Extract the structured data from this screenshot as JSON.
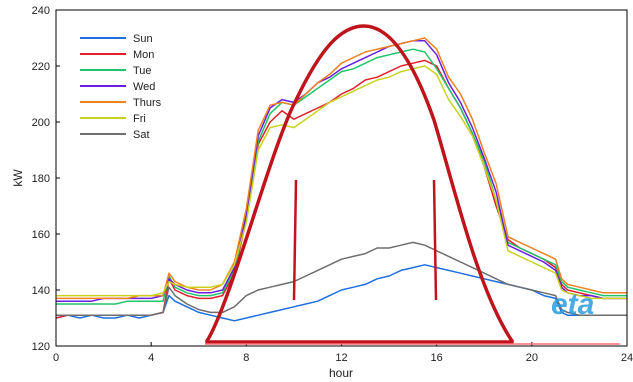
{
  "chart_data": {
    "type": "line",
    "title": "",
    "xlabel": "hour",
    "ylabel": "kW",
    "xlim": [
      0,
      24
    ],
    "ylim": [
      120,
      240
    ],
    "xticks": [
      0,
      4,
      8,
      12,
      16,
      20,
      24
    ],
    "yticks": [
      120,
      140,
      160,
      180,
      200,
      220,
      240
    ],
    "grid": false,
    "legend_position": "top-left",
    "x": [
      0,
      0.5,
      1,
      1.5,
      2,
      2.5,
      3,
      3.5,
      4,
      4.5,
      4.75,
      5,
      5.5,
      6,
      6.5,
      7,
      7.5,
      8,
      8.5,
      9,
      9.5,
      10,
      10.5,
      11,
      11.5,
      12,
      12.5,
      13,
      13.5,
      14,
      14.5,
      15,
      15.5,
      16,
      16.5,
      17,
      17.5,
      18,
      18.5,
      19,
      19.5,
      20,
      20.5,
      21,
      21.25,
      21.5,
      22,
      22.5,
      23,
      23.5,
      24
    ],
    "series": [
      {
        "name": "Sun",
        "color": "#1f6fe0",
        "values": [
          130,
          131,
          130,
          131,
          130,
          130,
          131,
          130,
          131,
          132,
          138,
          136,
          134,
          132,
          131,
          130,
          129,
          130,
          131,
          132,
          133,
          134,
          135,
          136,
          138,
          140,
          141,
          142,
          144,
          145,
          147,
          148,
          149,
          148,
          147,
          146,
          145,
          144,
          143,
          142,
          141,
          140,
          138,
          137,
          132,
          131,
          131,
          131,
          131,
          131,
          131
        ]
      },
      {
        "name": "Mon",
        "color": "#e0202a",
        "values": [
          130,
          131,
          131,
          131,
          131,
          131,
          131,
          131,
          131,
          132,
          144,
          140,
          138,
          137,
          137,
          138,
          146,
          165,
          192,
          200,
          204,
          201,
          203,
          205,
          207,
          210,
          212,
          215,
          216,
          218,
          220,
          221,
          222,
          220,
          212,
          205,
          196,
          184,
          170,
          158,
          155,
          153,
          151,
          148,
          142,
          140,
          139,
          138,
          137,
          137,
          137
        ]
      },
      {
        "name": "Tue",
        "color": "#22c36a",
        "values": [
          135,
          135,
          135,
          135,
          135,
          135,
          136,
          136,
          136,
          136,
          145,
          141,
          139,
          138,
          138,
          139,
          147,
          166,
          193,
          203,
          207,
          206,
          209,
          212,
          215,
          218,
          219,
          221,
          223,
          224,
          225,
          226,
          225,
          219,
          212,
          205,
          196,
          186,
          172,
          157,
          155,
          153,
          151,
          149,
          143,
          141,
          140,
          139,
          138,
          138,
          138
        ]
      },
      {
        "name": "Wed",
        "color": "#6a1fe0",
        "values": [
          136,
          136,
          136,
          136,
          137,
          137,
          137,
          137,
          137,
          138,
          144,
          142,
          140,
          139,
          139,
          140,
          148,
          167,
          195,
          205,
          208,
          207,
          210,
          214,
          216,
          219,
          221,
          223,
          225,
          227,
          228,
          229,
          229,
          224,
          214,
          207,
          198,
          187,
          175,
          156,
          154,
          152,
          150,
          147,
          141,
          139,
          138,
          138,
          137,
          137,
          137
        ]
      },
      {
        "name": "Thurs",
        "color": "#f08020",
        "values": [
          137,
          137,
          137,
          137,
          137,
          137,
          137,
          138,
          138,
          138,
          146,
          143,
          141,
          140,
          140,
          142,
          150,
          169,
          197,
          206,
          207,
          206,
          210,
          214,
          217,
          221,
          223,
          225,
          226,
          227,
          228,
          229,
          230,
          226,
          216,
          210,
          201,
          189,
          178,
          159,
          157,
          155,
          153,
          151,
          144,
          142,
          141,
          140,
          139,
          139,
          139
        ]
      },
      {
        "name": "Fri",
        "color": "#c8d21e",
        "values": [
          138,
          138,
          138,
          138,
          138,
          138,
          138,
          138,
          138,
          139,
          143,
          142,
          141,
          141,
          141,
          142,
          149,
          164,
          190,
          198,
          199,
          198,
          201,
          204,
          207,
          209,
          211,
          213,
          215,
          216,
          218,
          219,
          220,
          217,
          208,
          202,
          195,
          184,
          172,
          154,
          152,
          150,
          148,
          146,
          140,
          139,
          138,
          137,
          137,
          137,
          137
        ]
      },
      {
        "name": "Sat",
        "color": "#6e6e6e",
        "values": [
          131,
          131,
          131,
          131,
          131,
          131,
          131,
          131,
          131,
          132,
          141,
          138,
          135,
          133,
          132,
          132,
          134,
          138,
          140,
          141,
          142,
          143,
          145,
          147,
          149,
          151,
          152,
          153,
          155,
          155,
          156,
          157,
          156,
          154,
          152,
          150,
          148,
          146,
          144,
          142,
          141,
          140,
          139,
          138,
          133,
          132,
          131,
          131,
          131,
          131,
          131
        ]
      }
    ]
  },
  "annotations": {
    "stamp_text": "eta",
    "highlight_color": "#c0141c",
    "stamp_color": "#2a9de0"
  }
}
